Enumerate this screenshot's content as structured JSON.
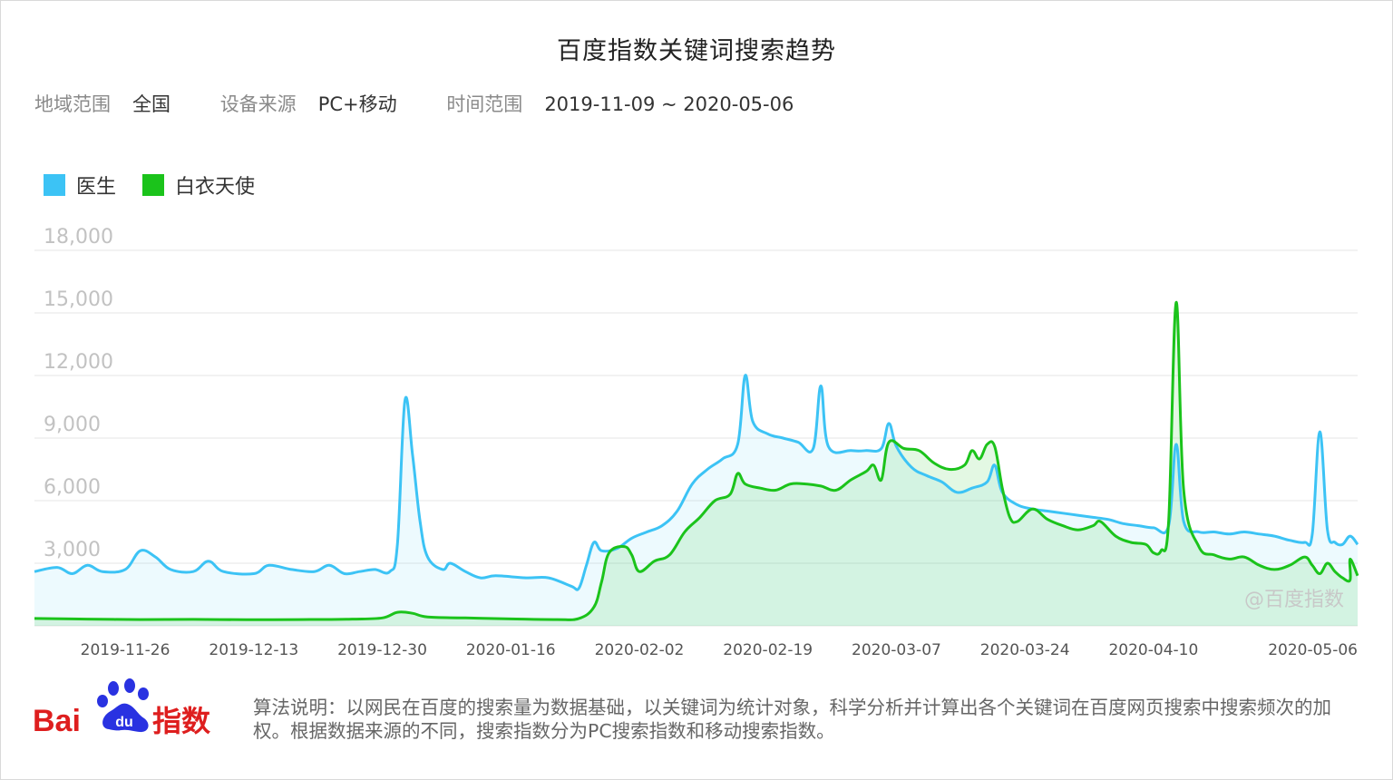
{
  "title": "百度指数关键词搜索趋势",
  "filters": [
    {
      "label": "地域范围",
      "value": "全国"
    },
    {
      "label": "设备来源",
      "value": "PC+移动"
    },
    {
      "label": "时间范围",
      "value": "2019-11-09 ~ 2020-05-06"
    }
  ],
  "watermark": "@百度指数",
  "logo": {
    "text": "Bai du 指数"
  },
  "footnote": "算法说明：以网民在百度的搜索量为数据基础，以关键词为统计对象，科学分析并计算出各个关键词在百度网页搜索中搜索频次的加权。根据数据来源的不同，搜索指数分为PC搜索指数和移动搜索指数。",
  "chart_data": {
    "type": "area",
    "title": "百度指数关键词搜索趋势",
    "xlabel": "",
    "ylabel": "",
    "x_start": "2019-11-14",
    "x_end": "2020-05-07",
    "ylim": [
      0,
      18000
    ],
    "y_ticks": [
      3000,
      6000,
      9000,
      12000,
      15000,
      18000
    ],
    "y_tick_labels": [
      "3,000",
      "6,000",
      "9,000",
      "12,000",
      "15,000",
      "18,000"
    ],
    "x_ticks": [
      "2019-11-26",
      "2019-12-13",
      "2019-12-30",
      "2020-01-16",
      "2020-02-02",
      "2020-02-19",
      "2020-03-07",
      "2020-03-24",
      "2020-04-10",
      "2020-05-06"
    ],
    "grid": true,
    "legend_position": "top-left",
    "series": [
      {
        "name": "医生",
        "color": "#3cc3f5",
        "points": [
          [
            "2019-11-14",
            2600
          ],
          [
            "2019-11-17",
            2800
          ],
          [
            "2019-11-19",
            2500
          ],
          [
            "2019-11-21",
            2900
          ],
          [
            "2019-11-23",
            2600
          ],
          [
            "2019-11-26",
            2700
          ],
          [
            "2019-11-28",
            3600
          ],
          [
            "2019-11-30",
            3300
          ],
          [
            "2019-12-02",
            2700
          ],
          [
            "2019-12-05",
            2600
          ],
          [
            "2019-12-07",
            3100
          ],
          [
            "2019-12-09",
            2600
          ],
          [
            "2019-12-13",
            2500
          ],
          [
            "2019-12-15",
            2900
          ],
          [
            "2019-12-18",
            2700
          ],
          [
            "2019-12-21",
            2600
          ],
          [
            "2019-12-23",
            2900
          ],
          [
            "2019-12-25",
            2500
          ],
          [
            "2019-12-27",
            2600
          ],
          [
            "2019-12-29",
            2700
          ],
          [
            "2019-12-31",
            2600
          ],
          [
            "2020-01-01",
            3900
          ],
          [
            "2020-01-02",
            10800
          ],
          [
            "2020-01-03",
            8200
          ],
          [
            "2020-01-04",
            5000
          ],
          [
            "2020-01-05",
            3300
          ],
          [
            "2020-01-07",
            2700
          ],
          [
            "2020-01-08",
            3000
          ],
          [
            "2020-01-10",
            2600
          ],
          [
            "2020-01-12",
            2300
          ],
          [
            "2020-01-14",
            2400
          ],
          [
            "2020-01-18",
            2300
          ],
          [
            "2020-01-21",
            2300
          ],
          [
            "2020-01-24",
            1900
          ],
          [
            "2020-01-25",
            1800
          ],
          [
            "2020-01-26",
            2900
          ],
          [
            "2020-01-27",
            4000
          ],
          [
            "2020-01-28",
            3600
          ],
          [
            "2020-01-30",
            3700
          ],
          [
            "2020-02-01",
            4200
          ],
          [
            "2020-02-03",
            4500
          ],
          [
            "2020-02-05",
            4800
          ],
          [
            "2020-02-07",
            5500
          ],
          [
            "2020-02-09",
            6800
          ],
          [
            "2020-02-11",
            7500
          ],
          [
            "2020-02-13",
            8000
          ],
          [
            "2020-02-15",
            8700
          ],
          [
            "2020-02-16",
            12000
          ],
          [
            "2020-02-17",
            9800
          ],
          [
            "2020-02-19",
            9200
          ],
          [
            "2020-02-21",
            9000
          ],
          [
            "2020-02-23",
            8800
          ],
          [
            "2020-02-25",
            8500
          ],
          [
            "2020-02-26",
            11500
          ],
          [
            "2020-02-27",
            8600
          ],
          [
            "2020-03-01",
            8400
          ],
          [
            "2020-03-03",
            8400
          ],
          [
            "2020-03-05",
            8500
          ],
          [
            "2020-03-06",
            9700
          ],
          [
            "2020-03-07",
            8600
          ],
          [
            "2020-03-09",
            7600
          ],
          [
            "2020-03-11",
            7200
          ],
          [
            "2020-03-13",
            6900
          ],
          [
            "2020-03-15",
            6400
          ],
          [
            "2020-03-17",
            6600
          ],
          [
            "2020-03-19",
            6900
          ],
          [
            "2020-03-20",
            7700
          ],
          [
            "2020-03-21",
            6400
          ],
          [
            "2020-03-23",
            5800
          ],
          [
            "2020-03-25",
            5600
          ],
          [
            "2020-03-27",
            5500
          ],
          [
            "2020-03-29",
            5400
          ],
          [
            "2020-03-31",
            5300
          ],
          [
            "2020-04-02",
            5200
          ],
          [
            "2020-04-04",
            5100
          ],
          [
            "2020-04-06",
            4900
          ],
          [
            "2020-04-08",
            4800
          ],
          [
            "2020-04-10",
            4700
          ],
          [
            "2020-04-12",
            4800
          ],
          [
            "2020-04-13",
            8700
          ],
          [
            "2020-04-14",
            5000
          ],
          [
            "2020-04-16",
            4500
          ],
          [
            "2020-04-18",
            4500
          ],
          [
            "2020-04-20",
            4400
          ],
          [
            "2020-04-22",
            4500
          ],
          [
            "2020-04-24",
            4400
          ],
          [
            "2020-04-26",
            4300
          ],
          [
            "2020-04-28",
            4100
          ],
          [
            "2020-04-30",
            4000
          ],
          [
            "2020-05-01",
            4400
          ],
          [
            "2020-05-02",
            9300
          ],
          [
            "2020-05-03",
            4600
          ],
          [
            "2020-05-04",
            4000
          ],
          [
            "2020-05-05",
            3900
          ],
          [
            "2020-05-06",
            4300
          ],
          [
            "2020-05-07",
            3900
          ]
        ]
      },
      {
        "name": "白衣天使",
        "color": "#1bc31b",
        "points": [
          [
            "2019-11-14",
            350
          ],
          [
            "2019-11-21",
            320
          ],
          [
            "2019-11-28",
            300
          ],
          [
            "2019-12-05",
            310
          ],
          [
            "2019-12-12",
            290
          ],
          [
            "2019-12-19",
            300
          ],
          [
            "2019-12-26",
            320
          ],
          [
            "2019-12-30",
            380
          ],
          [
            "2020-01-01",
            650
          ],
          [
            "2020-01-03",
            600
          ],
          [
            "2020-01-05",
            420
          ],
          [
            "2020-01-10",
            380
          ],
          [
            "2020-01-16",
            330
          ],
          [
            "2020-01-22",
            300
          ],
          [
            "2020-01-25",
            350
          ],
          [
            "2020-01-27",
            900
          ],
          [
            "2020-01-28",
            2100
          ],
          [
            "2020-01-29",
            3500
          ],
          [
            "2020-01-31",
            3800
          ],
          [
            "2020-02-01",
            3400
          ],
          [
            "2020-02-02",
            2600
          ],
          [
            "2020-02-04",
            3100
          ],
          [
            "2020-02-06",
            3400
          ],
          [
            "2020-02-08",
            4500
          ],
          [
            "2020-02-10",
            5200
          ],
          [
            "2020-02-12",
            6000
          ],
          [
            "2020-02-14",
            6300
          ],
          [
            "2020-02-15",
            7300
          ],
          [
            "2020-02-16",
            6800
          ],
          [
            "2020-02-18",
            6600
          ],
          [
            "2020-02-20",
            6500
          ],
          [
            "2020-02-22",
            6800
          ],
          [
            "2020-02-24",
            6800
          ],
          [
            "2020-02-26",
            6700
          ],
          [
            "2020-02-28",
            6500
          ],
          [
            "2020-03-01",
            7000
          ],
          [
            "2020-03-03",
            7400
          ],
          [
            "2020-03-04",
            7700
          ],
          [
            "2020-03-05",
            7000
          ],
          [
            "2020-03-06",
            8800
          ],
          [
            "2020-03-08",
            8500
          ],
          [
            "2020-03-10",
            8400
          ],
          [
            "2020-03-12",
            7800
          ],
          [
            "2020-03-14",
            7500
          ],
          [
            "2020-03-16",
            7700
          ],
          [
            "2020-03-17",
            8400
          ],
          [
            "2020-03-18",
            8000
          ],
          [
            "2020-03-19",
            8700
          ],
          [
            "2020-03-20",
            8600
          ],
          [
            "2020-03-21",
            6600
          ],
          [
            "2020-03-22",
            5200
          ],
          [
            "2020-03-23",
            5000
          ],
          [
            "2020-03-25",
            5600
          ],
          [
            "2020-03-27",
            5100
          ],
          [
            "2020-03-29",
            4800
          ],
          [
            "2020-03-31",
            4600
          ],
          [
            "2020-04-02",
            4800
          ],
          [
            "2020-04-03",
            5000
          ],
          [
            "2020-04-05",
            4300
          ],
          [
            "2020-04-07",
            4000
          ],
          [
            "2020-04-09",
            3900
          ],
          [
            "2020-04-10",
            3500
          ],
          [
            "2020-04-11",
            3600
          ],
          [
            "2020-04-12",
            5000
          ],
          [
            "2020-04-13",
            15500
          ],
          [
            "2020-04-14",
            6500
          ],
          [
            "2020-04-16",
            3800
          ],
          [
            "2020-04-18",
            3400
          ],
          [
            "2020-04-20",
            3200
          ],
          [
            "2020-04-22",
            3300
          ],
          [
            "2020-04-24",
            2900
          ],
          [
            "2020-04-26",
            2700
          ],
          [
            "2020-04-28",
            2900
          ],
          [
            "2020-04-30",
            3300
          ],
          [
            "2020-05-01",
            2900
          ],
          [
            "2020-05-02",
            2500
          ],
          [
            "2020-05-03",
            3000
          ],
          [
            "2020-05-04",
            2600
          ],
          [
            "2020-05-05",
            2300
          ],
          [
            "2020-05-06",
            2200
          ],
          [
            "2020-05-06",
            3200
          ],
          [
            "2020-05-07",
            2400
          ]
        ]
      }
    ]
  }
}
